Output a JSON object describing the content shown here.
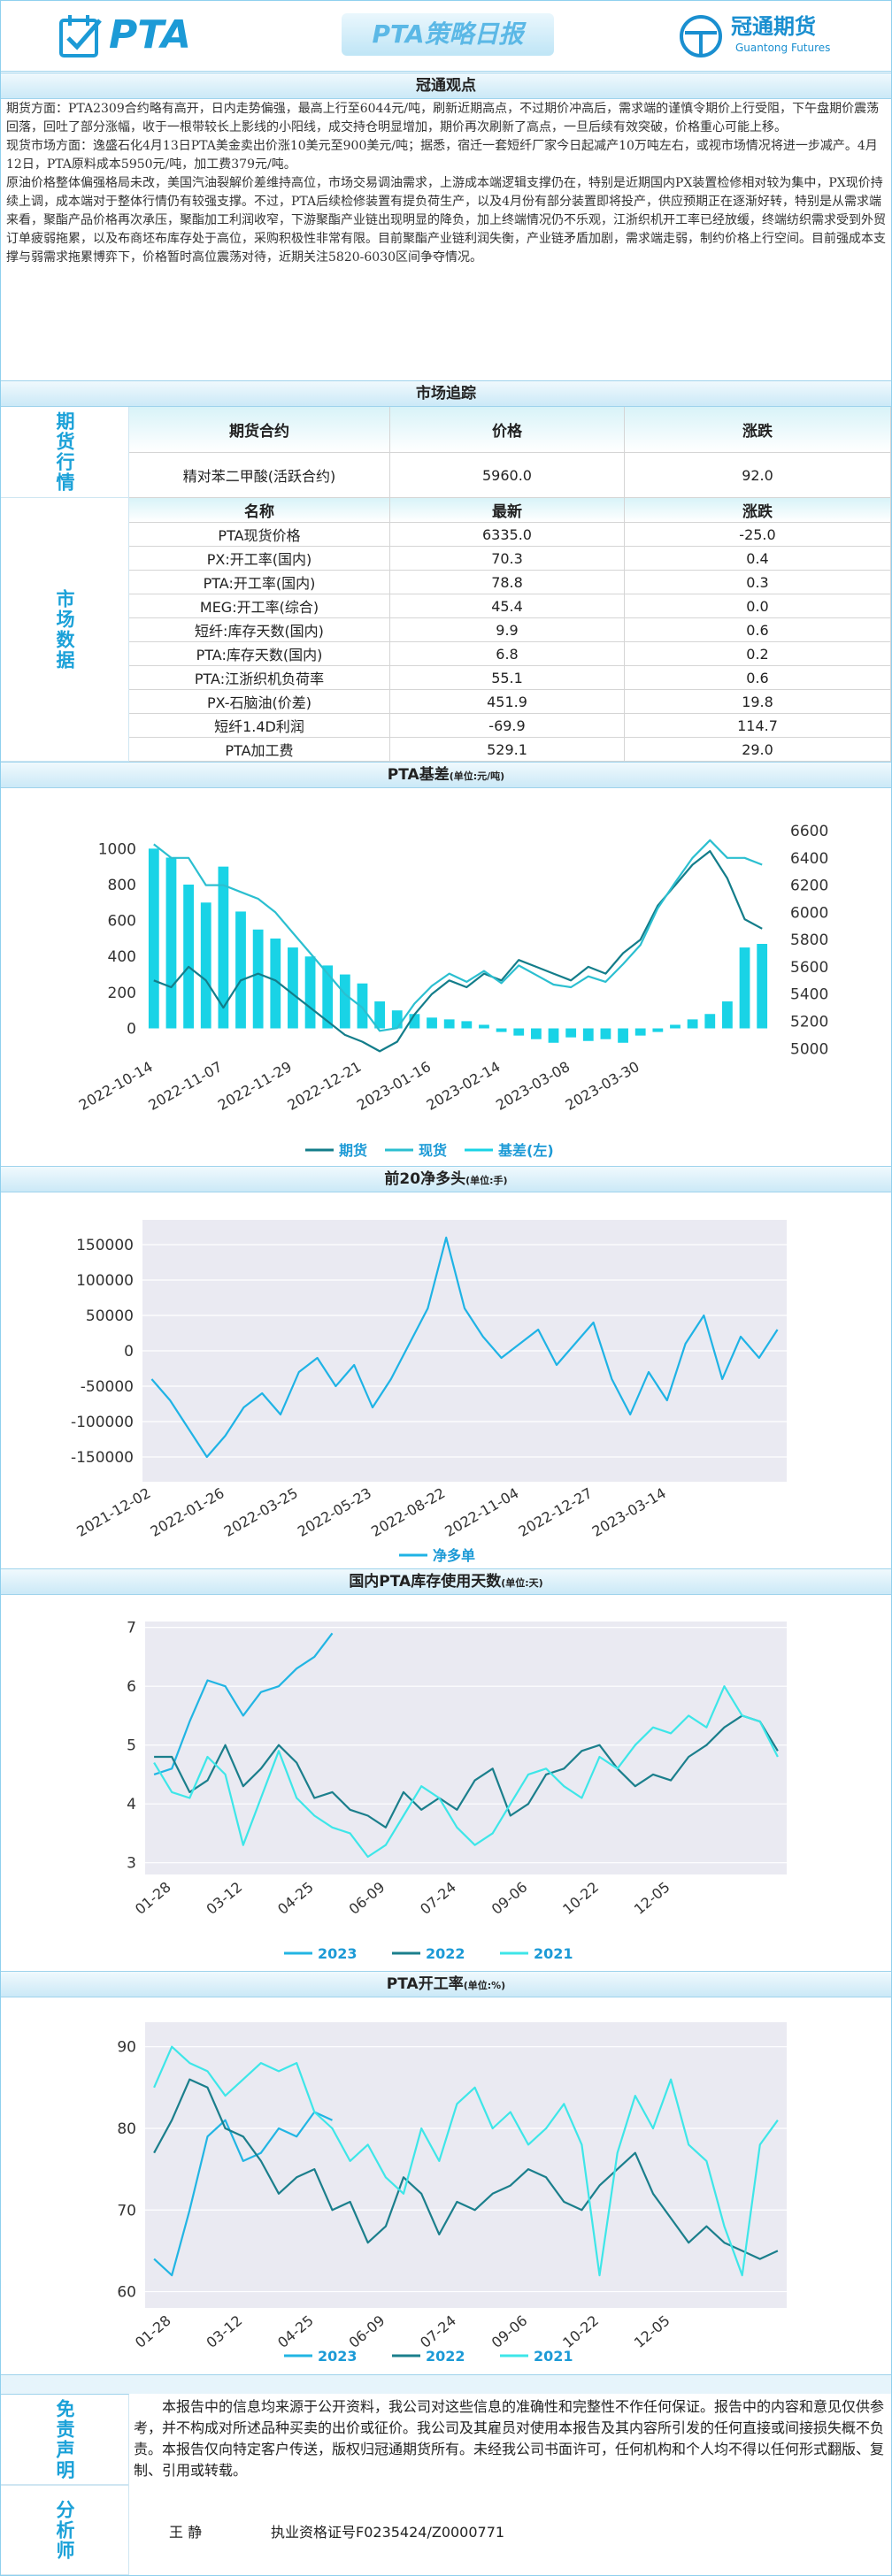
{
  "header": {
    "logo_text": "PTA",
    "title": "PTA策略日报",
    "brand": "冠通期货",
    "brand_en": "Guantong Futures"
  },
  "view": {
    "heading": "冠通观点",
    "paragraphs": [
      "期货方面：PTA2309合约略有高开，日内走势偏强，最高上行至6044元/吨，刷新近期高点，不过期价冲高后，需求端的谨慎令期价上行受阻，下午盘期价震荡回落，回吐了部分涨幅，收于一根带较长上影线的小阳线，成交持仓明显增加，期价再次刷新了高点，一旦后续有效突破，价格重心可能上移。",
      "现货市场方面：逸盛石化4月13日PTA美金卖出价涨10美元至900美元/吨；据悉，宿迁一套短纤厂家今日起减产10万吨左右，或视市场情况将进一步减产。4月12日，PTA原料成本5950元/吨，加工费379元/吨。",
      "原油价格整体偏强格局未改，美国汽油裂解价差维持高位，市场交易调油需求，上游成本端逻辑支撑仍在，特别是近期国内PX装置检修相对较为集中，PX现价持续上调，成本端对于整体行情仍有较强支撑。不过，PTA后续检修装置有提负荷生产，以及4月份有部分装置即将投产，供应预期正在逐渐好转，特别是从需求端来看，聚酯产品价格再次承压，聚酯加工利润收窄，下游聚酯产业链出现明显的降负，加上终端情况仍不乐观，江浙织机开工率已经放缓，终端纺织需求受到外贸订单疲弱拖累，以及布商坯布库存处于高位，采购积极性非常有限。目前聚酯产业链利润失衡，产业链矛盾加剧，需求端走弱，制约价格上行空间。目前强成本支撑与弱需求拖累博弈下，价格暂时高位震荡对待，近期关注5820-6030区间争夺情况。"
    ]
  },
  "market": {
    "heading": "市场追踪",
    "futures": {
      "label": "期货行情",
      "columns": [
        "期货合约",
        "价格",
        "涨跌"
      ],
      "rows": [
        [
          "精对苯二甲酸(活跃合约)",
          "5960.0",
          "92.0"
        ]
      ]
    },
    "data": {
      "label": "市场数据",
      "columns": [
        "名称",
        "最新",
        "涨跌"
      ],
      "rows": [
        [
          "PTA现货价格",
          "6335.0",
          "-25.0"
        ],
        [
          "PX:开工率(国内)",
          "70.3",
          "0.4"
        ],
        [
          "PTA:开工率(国内)",
          "78.8",
          "0.3"
        ],
        [
          "MEG:开工率(综合)",
          "45.4",
          "0.0"
        ],
        [
          "短纤:库存天数(国内)",
          "9.9",
          "0.6"
        ],
        [
          "PTA:库存天数(国内)",
          "6.8",
          "0.2"
        ],
        [
          "PTA:江浙织机负荷率",
          "55.1",
          "0.6"
        ],
        [
          "PX-石脑油(价差)",
          "451.9",
          "19.8"
        ],
        [
          "短纤1.4D利润",
          "-69.9",
          "114.7"
        ],
        [
          "PTA加工费",
          "529.1",
          "29.0"
        ]
      ]
    }
  },
  "chart_data": [
    {
      "type": "line",
      "title": "PTA基差",
      "unit": "(单位:元/吨)",
      "categories": [
        "2022-10-14",
        null,
        null,
        null,
        "2022-11-07",
        null,
        null,
        null,
        "2022-11-29",
        null,
        null,
        null,
        "2022-12-21",
        null,
        null,
        null,
        "2023-01-16",
        null,
        null,
        null,
        "2023-02-14",
        null,
        null,
        null,
        "2023-03-08",
        null,
        null,
        null,
        "2023-03-30",
        null,
        null,
        null,
        null,
        null,
        null,
        null
      ],
      "series": [
        {
          "name": "期货",
          "color": "#137d8a",
          "axis": "y2",
          "values": [
            5500,
            5450,
            5600,
            5500,
            5300,
            5500,
            5550,
            5500,
            5400,
            5300,
            5200,
            5100,
            5050,
            4980,
            5050,
            5250,
            5400,
            5500,
            5450,
            5550,
            5500,
            5650,
            5600,
            5550,
            5500,
            5600,
            5550,
            5700,
            5800,
            6050,
            6200,
            6350,
            6450,
            6250,
            5950,
            5880
          ]
        },
        {
          "name": "现货",
          "color": "#2bbfd0",
          "axis": "y2",
          "values": [
            6500,
            6400,
            6400,
            6200,
            6200,
            6150,
            6100,
            6000,
            5850,
            5700,
            5550,
            5400,
            5300,
            5130,
            5150,
            5330,
            5460,
            5550,
            5490,
            5570,
            5480,
            5610,
            5540,
            5470,
            5450,
            5530,
            5490,
            5620,
            5760,
            6030,
            6220,
            6400,
            6530,
            6400,
            6400,
            6350
          ]
        },
        {
          "name": "基差(左)",
          "color": "#19d3e6",
          "type": "bar",
          "values": [
            1000,
            950,
            800,
            700,
            900,
            650,
            550,
            500,
            450,
            400,
            350,
            300,
            250,
            150,
            100,
            80,
            60,
            50,
            40,
            20,
            -20,
            -40,
            -60,
            -80,
            -50,
            -70,
            -60,
            -80,
            -40,
            -20,
            20,
            50,
            80,
            150,
            450,
            470
          ]
        }
      ],
      "ylim": [
        -150,
        1100
      ],
      "yticks": [
        0,
        200,
        400,
        600,
        800,
        1000
      ],
      "y2lim": [
        4950,
        6600
      ],
      "y2ticks": [
        5000,
        5200,
        5400,
        5600,
        5800,
        6000,
        6200,
        6400,
        6600
      ],
      "grid": false,
      "background": "#ffffff"
    },
    {
      "type": "line",
      "title": "前20净多头",
      "unit": "(单位:手)",
      "categories": [
        "2021-12-02",
        null,
        null,
        null,
        "2022-01-26",
        null,
        null,
        null,
        "2022-03-25",
        null,
        null,
        null,
        "2022-05-23",
        null,
        null,
        null,
        "2022-08-22",
        null,
        null,
        null,
        "2022-11-04",
        null,
        null,
        null,
        "2022-12-27",
        null,
        null,
        null,
        "2023-03-14",
        null,
        null,
        null,
        null,
        null,
        null
      ],
      "series": [
        {
          "name": "净多单",
          "color": "#1fb3e5",
          "values": [
            -40000,
            -70000,
            -110000,
            -150000,
            -120000,
            -80000,
            -60000,
            -90000,
            -30000,
            -10000,
            -50000,
            -20000,
            -80000,
            -40000,
            10000,
            60000,
            160000,
            60000,
            20000,
            -10000,
            10000,
            30000,
            -20000,
            10000,
            40000,
            -40000,
            -90000,
            -30000,
            -70000,
            10000,
            50000,
            -40000,
            20000,
            -10000,
            30000
          ]
        }
      ],
      "ylim": [
        -185000,
        185000
      ],
      "yticks": [
        -150000,
        -100000,
        -50000,
        0,
        50000,
        100000,
        150000
      ],
      "grid": true,
      "background": "#eaeaf2"
    },
    {
      "type": "line",
      "title": "国内PTA库存使用天数",
      "unit": "(单位:天)",
      "categories": [
        null,
        "01-28",
        null,
        null,
        null,
        "03-12",
        null,
        null,
        null,
        "04-25",
        null,
        null,
        null,
        "06-09",
        null,
        null,
        null,
        "07-24",
        null,
        null,
        null,
        "09-06",
        null,
        null,
        null,
        "10-22",
        null,
        null,
        null,
        "12-05",
        null,
        null,
        null,
        null,
        null,
        null
      ],
      "series": [
        {
          "name": "2023",
          "color": "#22b5e3",
          "values": [
            4.5,
            4.6,
            5.4,
            6.1,
            6.0,
            5.5,
            5.9,
            6.0,
            6.3,
            6.5,
            6.9,
            null,
            null,
            null,
            null,
            null,
            null,
            null,
            null,
            null,
            null,
            null,
            null,
            null,
            null,
            null,
            null,
            null,
            null,
            null,
            null,
            null,
            null,
            null,
            null,
            null
          ]
        },
        {
          "name": "2022",
          "color": "#1b7f8c",
          "values": [
            4.8,
            4.8,
            4.2,
            4.4,
            5.0,
            4.3,
            4.6,
            5.0,
            4.7,
            4.1,
            4.2,
            3.9,
            3.8,
            3.6,
            4.2,
            3.9,
            4.1,
            3.9,
            4.4,
            4.6,
            3.8,
            4.0,
            4.5,
            4.6,
            4.9,
            5.0,
            4.6,
            4.3,
            4.5,
            4.4,
            4.8,
            5.0,
            5.3,
            5.5,
            5.4,
            4.9
          ]
        },
        {
          "name": "2021",
          "color": "#3ee6e8",
          "values": [
            4.7,
            4.2,
            4.1,
            4.8,
            4.5,
            3.3,
            4.1,
            4.9,
            4.1,
            3.8,
            3.6,
            3.5,
            3.1,
            3.3,
            3.8,
            4.3,
            4.1,
            3.6,
            3.3,
            3.5,
            4.0,
            4.5,
            4.6,
            4.3,
            4.1,
            4.8,
            4.6,
            5.0,
            5.3,
            5.2,
            5.5,
            5.3,
            6.0,
            5.5,
            5.4,
            4.8
          ]
        }
      ],
      "ylim": [
        2.8,
        7.1
      ],
      "yticks": [
        3,
        4,
        5,
        6,
        7
      ],
      "grid": true,
      "background": "#eaeaf2"
    },
    {
      "type": "line",
      "title": "PTA开工率",
      "unit": "(单位:%)",
      "categories": [
        null,
        "01-28",
        null,
        null,
        null,
        "03-12",
        null,
        null,
        null,
        "04-25",
        null,
        null,
        null,
        "06-09",
        null,
        null,
        null,
        "07-24",
        null,
        null,
        null,
        "09-06",
        null,
        null,
        null,
        "10-22",
        null,
        null,
        null,
        "12-05",
        null,
        null,
        null,
        null,
        null,
        null
      ],
      "series": [
        {
          "name": "2023",
          "color": "#22b5e3",
          "values": [
            64,
            62,
            70,
            79,
            81,
            76,
            77,
            80,
            79,
            82,
            81,
            null,
            null,
            null,
            null,
            null,
            null,
            null,
            null,
            null,
            null,
            null,
            null,
            null,
            null,
            null,
            null,
            null,
            null,
            null,
            null,
            null,
            null,
            null,
            null,
            null
          ]
        },
        {
          "name": "2022",
          "color": "#1b7f8c",
          "values": [
            77,
            81,
            86,
            85,
            80,
            79,
            76,
            72,
            74,
            75,
            70,
            71,
            66,
            68,
            74,
            72,
            67,
            71,
            70,
            72,
            73,
            75,
            74,
            71,
            70,
            73,
            75,
            77,
            72,
            69,
            66,
            68,
            66,
            65,
            64,
            65
          ]
        },
        {
          "name": "2021",
          "color": "#3ee6e8",
          "values": [
            85,
            90,
            88,
            87,
            84,
            86,
            88,
            87,
            88,
            82,
            80,
            76,
            78,
            74,
            72,
            80,
            76,
            83,
            85,
            80,
            82,
            78,
            80,
            83,
            78,
            62,
            77,
            84,
            80,
            86,
            78,
            76,
            68,
            62,
            78,
            81
          ]
        }
      ],
      "ylim": [
        58,
        93
      ],
      "yticks": [
        60,
        70,
        80,
        90
      ],
      "grid": true,
      "background": "#eaeaf2"
    }
  ],
  "disclaimer": {
    "label": "免责声明",
    "text": "本报告中的信息均来源于公开资料，我公司对这些信息的准确性和完整性不作任何保证。报告中的内容和意见仅供参考，并不构成对所述品种买卖的出价或征价。我公司及其雇员对使用本报告及其内容所引发的任何直接或间接损失概不负责。本报告仅向特定客户传送，版权归冠通期货所有。未经我公司书面许可，任何机构和个人均不得以任何形式翻版、复制、引用或转载。"
  },
  "analyst": {
    "label": "分析师",
    "name": "王 静",
    "license": "执业资格证号F0235424/Z0000771"
  }
}
